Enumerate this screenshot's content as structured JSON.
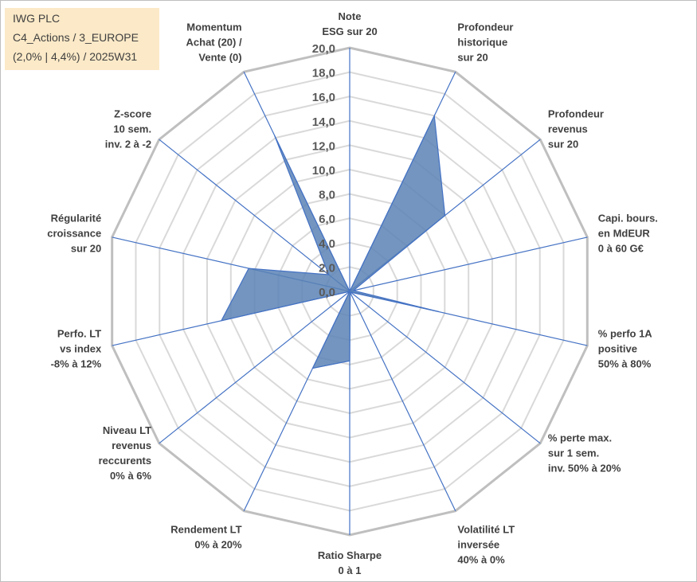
{
  "header": {
    "line1": "IWG PLC",
    "line2": "C4_Actions / 3_EUROPE",
    "line3": "(2,0% | 4,4%) / 2025W31"
  },
  "colors": {
    "fill": "#5b83b5",
    "stroke": "#4472c4",
    "grid": "#d9d9d9",
    "outer_grid": "#bfbfbf",
    "spoke": "#4472c4",
    "header_bg": "#fbe9c7"
  },
  "chart_data": {
    "type": "radar",
    "title": "",
    "rmin": 0,
    "rmax": 20,
    "rstep": 2,
    "tick_labels": [
      "0,0",
      "2,0",
      "4,0",
      "6,0",
      "8,0",
      "10,0",
      "12,0",
      "14,0",
      "16,0",
      "18,0",
      "20,0"
    ],
    "axes": [
      [
        "Note",
        "ESG sur 20"
      ],
      [
        "Profondeur",
        "historique",
        "sur 20"
      ],
      [
        "Profondeur",
        "revenus",
        "sur 20"
      ],
      [
        "Capi. bours.",
        "en MdEUR",
        "0 à 60 G€"
      ],
      [
        "% perfo 1A",
        "positive",
        "50% à 80%"
      ],
      [
        "% perte max.",
        "sur 1 sem.",
        "inv. 50% à 20%"
      ],
      [
        "Volatilité LT",
        "inversée",
        "40% à 0%"
      ],
      [
        "Ratio Sharpe",
        "0 à 1"
      ],
      [
        "Rendement LT",
        "0% à 20%"
      ],
      [
        "Niveau LT",
        "revenus",
        "reccurents",
        "0% à 6%"
      ],
      [
        "Perfo. LT",
        "vs index",
        "-8% à 12%"
      ],
      [
        "Régularité",
        "croissance",
        "sur 20"
      ],
      [
        "Z-score",
        "10 sem.",
        "inv. 2 à -2"
      ],
      [
        "Momentum",
        "Achat (20) /",
        "Vente (0)"
      ]
    ],
    "series": [
      {
        "values": [
          0.0,
          16.0,
          10.0,
          0.3,
          7.5,
          0.1,
          0.1,
          5.7,
          7.0,
          0.0,
          10.8,
          8.5,
          2.2,
          14.2
        ]
      }
    ]
  }
}
